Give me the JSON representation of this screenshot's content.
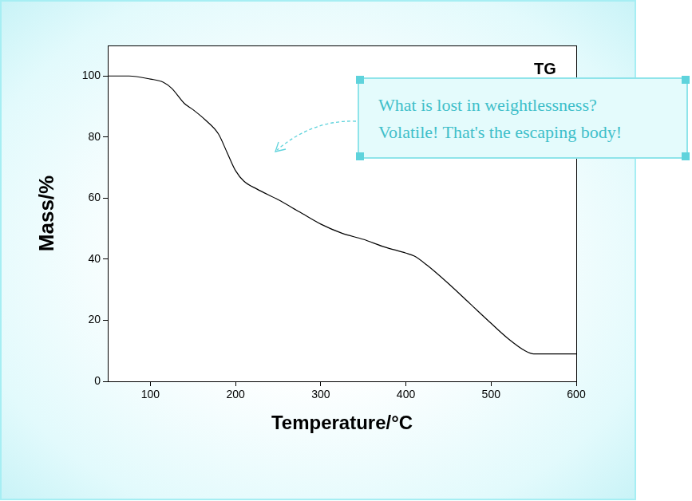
{
  "chart_data": {
    "type": "line",
    "x_label": "Temperature/°C",
    "y_label": "Mass/%",
    "x": [
      50,
      75,
      100,
      115,
      125,
      140,
      150,
      165,
      180,
      190,
      200,
      210,
      225,
      250,
      275,
      300,
      325,
      350,
      375,
      400,
      410,
      425,
      450,
      475,
      500,
      520,
      540,
      550,
      575,
      600
    ],
    "values": [
      100,
      100,
      99,
      98,
      96,
      91,
      89,
      85.5,
      81,
      75,
      69,
      65.5,
      63,
      59.5,
      55.5,
      51.5,
      48.5,
      46.5,
      44,
      42,
      41,
      38,
      32,
      25.5,
      19,
      14,
      10,
      9,
      9,
      9
    ],
    "color": "#000000",
    "xlim": [
      50,
      600
    ],
    "ylim": [
      0,
      110
    ],
    "xticks": [
      100,
      200,
      300,
      400,
      500,
      600
    ],
    "yticks": [
      0,
      20,
      40,
      60,
      80,
      100
    ],
    "grid": false,
    "annotations": [
      "TG",
      "What is lost in weightlessness?",
      "Volatile! That's the escaping body!"
    ]
  }
}
